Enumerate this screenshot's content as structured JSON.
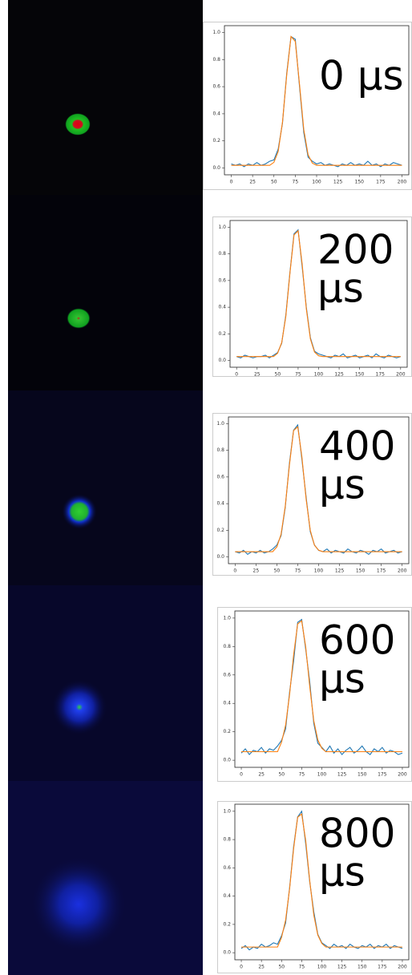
{
  "chart_data": [
    {
      "type": "line",
      "annotation": [
        "0 µs"
      ],
      "x": [
        0,
        5,
        10,
        15,
        20,
        25,
        30,
        35,
        40,
        45,
        50,
        55,
        60,
        65,
        70,
        75,
        80,
        85,
        90,
        95,
        100,
        105,
        110,
        115,
        120,
        125,
        130,
        135,
        140,
        145,
        150,
        155,
        160,
        165,
        170,
        175,
        180,
        185,
        190,
        195,
        200
      ],
      "series": [
        {
          "color": "#1f77b4",
          "values": [
            0.03,
            0.02,
            0.03,
            0.01,
            0.03,
            0.02,
            0.04,
            0.02,
            0.03,
            0.05,
            0.06,
            0.14,
            0.33,
            0.7,
            0.97,
            0.95,
            0.6,
            0.26,
            0.08,
            0.05,
            0.03,
            0.04,
            0.02,
            0.03,
            0.02,
            0.01,
            0.03,
            0.02,
            0.04,
            0.02,
            0.03,
            0.02,
            0.05,
            0.02,
            0.03,
            0.01,
            0.03,
            0.02,
            0.04,
            0.03,
            0.02
          ]
        },
        {
          "color": "#ff7f0e",
          "values": [
            0.02,
            0.02,
            0.02,
            0.02,
            0.02,
            0.02,
            0.02,
            0.02,
            0.02,
            0.02,
            0.042,
            0.122,
            0.338,
            0.688,
            0.97,
            0.934,
            0.615,
            0.282,
            0.098,
            0.036,
            0.02,
            0.02,
            0.02,
            0.02,
            0.02,
            0.02,
            0.02,
            0.02,
            0.02,
            0.02,
            0.02,
            0.02,
            0.02,
            0.02,
            0.02,
            0.02,
            0.02,
            0.02,
            0.02,
            0.02,
            0.02
          ]
        }
      ],
      "xlim": [
        -8,
        208
      ],
      "xticks": [
        0,
        25,
        50,
        75,
        100,
        125,
        150,
        175,
        200
      ],
      "ylim": [
        -0.05,
        1.05
      ],
      "yticks": [
        {
          "value": 0,
          "label": "0.0"
        },
        0.2,
        0.4,
        0.6,
        0.8,
        {
          "value": 1,
          "label": "1.0"
        }
      ]
    },
    {
      "type": "line",
      "annotation": [
        "200",
        "µs"
      ],
      "x": [
        0,
        5,
        10,
        15,
        20,
        25,
        30,
        35,
        40,
        45,
        50,
        55,
        60,
        65,
        70,
        75,
        80,
        85,
        90,
        95,
        100,
        105,
        110,
        115,
        120,
        125,
        130,
        135,
        140,
        145,
        150,
        155,
        160,
        165,
        170,
        175,
        180,
        185,
        190,
        195,
        200
      ],
      "series": [
        {
          "color": "#1f77b4",
          "values": [
            0.03,
            0.02,
            0.04,
            0.03,
            0.02,
            0.03,
            0.03,
            0.04,
            0.02,
            0.04,
            0.06,
            0.13,
            0.34,
            0.66,
            0.95,
            0.98,
            0.7,
            0.4,
            0.17,
            0.07,
            0.05,
            0.04,
            0.03,
            0.02,
            0.04,
            0.03,
            0.05,
            0.02,
            0.03,
            0.04,
            0.02,
            0.03,
            0.04,
            0.02,
            0.05,
            0.03,
            0.02,
            0.04,
            0.03,
            0.02,
            0.03
          ]
        },
        {
          "color": "#ff7f0e",
          "values": [
            0.03,
            0.03,
            0.03,
            0.03,
            0.03,
            0.03,
            0.03,
            0.03,
            0.03,
            0.03,
            0.055,
            0.135,
            0.33,
            0.653,
            0.942,
            0.973,
            0.72,
            0.388,
            0.161,
            0.064,
            0.036,
            0.03,
            0.03,
            0.03,
            0.03,
            0.03,
            0.03,
            0.03,
            0.03,
            0.03,
            0.03,
            0.03,
            0.03,
            0.03,
            0.03,
            0.03,
            0.03,
            0.03,
            0.03,
            0.03,
            0.03
          ]
        }
      ],
      "xlim": [
        -8,
        208
      ],
      "xticks": [
        0,
        25,
        50,
        75,
        100,
        125,
        150,
        175,
        200
      ],
      "ylim": [
        -0.05,
        1.05
      ],
      "yticks": [
        {
          "value": 0,
          "label": "0.0"
        },
        0.2,
        0.4,
        0.6,
        0.8,
        {
          "value": 1,
          "label": "1.0"
        }
      ]
    },
    {
      "type": "line",
      "annotation": [
        "400",
        "µs"
      ],
      "x": [
        0,
        5,
        10,
        15,
        20,
        25,
        30,
        35,
        40,
        45,
        50,
        55,
        60,
        65,
        70,
        75,
        80,
        85,
        90,
        95,
        100,
        105,
        110,
        115,
        120,
        125,
        130,
        135,
        140,
        145,
        150,
        155,
        160,
        165,
        170,
        175,
        180,
        185,
        190,
        195,
        200
      ],
      "series": [
        {
          "color": "#1f77b4",
          "values": [
            0.04,
            0.03,
            0.05,
            0.02,
            0.04,
            0.03,
            0.05,
            0.03,
            0.04,
            0.06,
            0.09,
            0.16,
            0.37,
            0.7,
            0.95,
            0.99,
            0.73,
            0.45,
            0.19,
            0.09,
            0.05,
            0.04,
            0.06,
            0.03,
            0.05,
            0.04,
            0.03,
            0.06,
            0.04,
            0.03,
            0.05,
            0.04,
            0.02,
            0.05,
            0.04,
            0.06,
            0.03,
            0.04,
            0.05,
            0.03,
            0.04
          ]
        },
        {
          "color": "#ff7f0e",
          "values": [
            0.04,
            0.04,
            0.04,
            0.04,
            0.04,
            0.04,
            0.04,
            0.04,
            0.04,
            0.04,
            0.076,
            0.17,
            0.379,
            0.687,
            0.948,
            0.976,
            0.749,
            0.435,
            0.2,
            0.088,
            0.051,
            0.04,
            0.04,
            0.04,
            0.04,
            0.04,
            0.04,
            0.04,
            0.04,
            0.04,
            0.04,
            0.04,
            0.04,
            0.04,
            0.04,
            0.04,
            0.04,
            0.04,
            0.04,
            0.04,
            0.04
          ]
        }
      ],
      "xlim": [
        -8,
        208
      ],
      "xticks": [
        0,
        25,
        50,
        75,
        100,
        125,
        150,
        175,
        200
      ],
      "ylim": [
        -0.05,
        1.05
      ],
      "yticks": [
        {
          "value": 0,
          "label": "0.0"
        },
        0.2,
        0.4,
        0.6,
        0.8,
        {
          "value": 1,
          "label": "1.0"
        }
      ]
    },
    {
      "type": "line",
      "annotation": [
        "600",
        "µs"
      ],
      "x": [
        0,
        5,
        10,
        15,
        20,
        25,
        30,
        35,
        40,
        45,
        50,
        55,
        60,
        65,
        70,
        75,
        80,
        85,
        90,
        95,
        100,
        105,
        110,
        115,
        120,
        125,
        130,
        135,
        140,
        145,
        150,
        155,
        160,
        165,
        170,
        175,
        180,
        185,
        190,
        195,
        200
      ],
      "series": [
        {
          "color": "#1f77b4",
          "values": [
            0.05,
            0.08,
            0.04,
            0.07,
            0.06,
            0.09,
            0.05,
            0.08,
            0.07,
            0.1,
            0.14,
            0.22,
            0.48,
            0.7,
            0.97,
            0.99,
            0.78,
            0.55,
            0.26,
            0.12,
            0.09,
            0.06,
            0.1,
            0.05,
            0.08,
            0.04,
            0.07,
            0.09,
            0.05,
            0.07,
            0.1,
            0.06,
            0.04,
            0.08,
            0.06,
            0.09,
            0.05,
            0.07,
            0.06,
            0.04,
            0.05
          ]
        },
        {
          "color": "#ff7f0e",
          "values": [
            0.06,
            0.06,
            0.06,
            0.06,
            0.06,
            0.06,
            0.06,
            0.06,
            0.06,
            0.06,
            0.127,
            0.246,
            0.464,
            0.742,
            0.959,
            0.981,
            0.796,
            0.517,
            0.278,
            0.143,
            0.084,
            0.06,
            0.06,
            0.06,
            0.06,
            0.06,
            0.06,
            0.06,
            0.06,
            0.06,
            0.06,
            0.06,
            0.06,
            0.06,
            0.06,
            0.06,
            0.06,
            0.06,
            0.06,
            0.06,
            0.06
          ]
        }
      ],
      "xlim": [
        -8,
        208
      ],
      "xticks": [
        0,
        25,
        50,
        75,
        100,
        125,
        150,
        175,
        200
      ],
      "ylim": [
        -0.05,
        1.05
      ],
      "yticks": [
        {
          "value": 0,
          "label": "0.0"
        },
        0.2,
        0.4,
        0.6,
        0.8,
        {
          "value": 1,
          "label": "1.0"
        }
      ]
    },
    {
      "type": "line",
      "annotation": [
        "800",
        "µs"
      ],
      "x": [
        0,
        5,
        10,
        15,
        20,
        25,
        30,
        35,
        40,
        45,
        50,
        55,
        60,
        65,
        70,
        75,
        80,
        85,
        90,
        95,
        100,
        105,
        110,
        115,
        120,
        125,
        130,
        135,
        140,
        145,
        150,
        155,
        160,
        165,
        170,
        175,
        180,
        185,
        190,
        195,
        200
      ],
      "series": [
        {
          "color": "#1f77b4",
          "values": [
            0.03,
            0.05,
            0.02,
            0.04,
            0.03,
            0.06,
            0.04,
            0.05,
            0.07,
            0.06,
            0.12,
            0.21,
            0.46,
            0.75,
            0.96,
            1.0,
            0.77,
            0.5,
            0.29,
            0.13,
            0.07,
            0.05,
            0.03,
            0.06,
            0.04,
            0.05,
            0.03,
            0.06,
            0.04,
            0.03,
            0.05,
            0.04,
            0.06,
            0.03,
            0.05,
            0.04,
            0.06,
            0.03,
            0.05,
            0.04,
            0.03
          ]
        },
        {
          "color": "#ff7f0e",
          "values": [
            0.04,
            0.04,
            0.04,
            0.04,
            0.04,
            0.04,
            0.04,
            0.04,
            0.04,
            0.04,
            0.108,
            0.23,
            0.453,
            0.737,
            0.958,
            0.981,
            0.792,
            0.508,
            0.267,
            0.125,
            0.065,
            0.04,
            0.04,
            0.04,
            0.04,
            0.04,
            0.04,
            0.04,
            0.04,
            0.04,
            0.04,
            0.04,
            0.04,
            0.04,
            0.04,
            0.04,
            0.04,
            0.04,
            0.04,
            0.04,
            0.04
          ]
        }
      ],
      "xlim": [
        -8,
        208
      ],
      "xticks": [
        0,
        25,
        50,
        75,
        100,
        125,
        150,
        175,
        200
      ],
      "ylim": [
        -0.05,
        1.05
      ],
      "yticks": [
        {
          "value": 0,
          "label": "0.0"
        },
        0.2,
        0.4,
        0.6,
        0.8,
        {
          "value": 1,
          "label": "1.0"
        }
      ]
    }
  ]
}
